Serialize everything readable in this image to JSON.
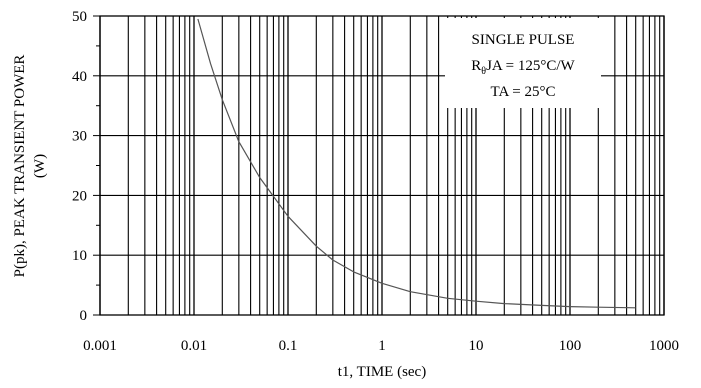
{
  "chart_data": {
    "type": "line",
    "title": "",
    "xlabel": "t1, TIME (sec)",
    "ylabel_lines": [
      "P(pk), PEAK TRANSIENT POWER",
      "(W)"
    ],
    "x_scale": "log",
    "xlim": [
      0.001,
      1000
    ],
    "ylim": [
      0,
      50
    ],
    "x_tick_labels": [
      "0.001",
      "0.01",
      "0.1",
      "1",
      "10",
      "100",
      "1000"
    ],
    "x_tick_values": [
      0.001,
      0.01,
      0.1,
      1,
      10,
      100,
      1000
    ],
    "y_tick_labels": [
      "0",
      "10",
      "20",
      "30",
      "40",
      "50"
    ],
    "y_tick_values": [
      0,
      10,
      20,
      30,
      40,
      50
    ],
    "grid": true,
    "series": [
      {
        "x": [
          0.011,
          0.015,
          0.02,
          0.03,
          0.05,
          0.1,
          0.2,
          0.3,
          0.5,
          1,
          2,
          5,
          10,
          20,
          50,
          100,
          200,
          500
        ],
        "y": [
          49.5,
          42.0,
          36.0,
          29.0,
          23.0,
          16.5,
          11.5,
          9.2,
          7.2,
          5.3,
          3.9,
          2.8,
          2.3,
          1.9,
          1.6,
          1.4,
          1.3,
          1.2
        ]
      }
    ],
    "annotation": {
      "line1": "SINGLE PULSE",
      "line2_prefix": "R",
      "line2_sub": "θ",
      "line2_rest": "JA = 125°C/W",
      "line3": "TA = 25°C"
    }
  },
  "colors": {
    "grid": "#000000",
    "curve": "#555555",
    "background": "#ffffff"
  }
}
